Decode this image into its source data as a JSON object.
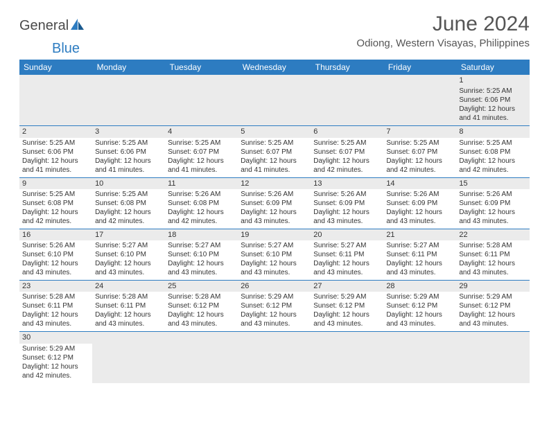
{
  "logo": {
    "gray_text": "General",
    "blue_text": "Blue"
  },
  "title": "June 2024",
  "location": "Odiong, Western Visayas, Philippines",
  "colors": {
    "header_bg": "#2d7cc1",
    "header_text": "#ffffff",
    "daynum_bg": "#ebebeb",
    "text": "#333333",
    "title_text": "#555555",
    "border": "#2d7cc1"
  },
  "fonts": {
    "title_size": 30,
    "location_size": 15,
    "th_size": 12,
    "cell_size": 10,
    "daynum_size": 11
  },
  "weekdays": [
    "Sunday",
    "Monday",
    "Tuesday",
    "Wednesday",
    "Thursday",
    "Friday",
    "Saturday"
  ],
  "weeks": [
    [
      null,
      null,
      null,
      null,
      null,
      null,
      {
        "n": "1",
        "sr": "Sunrise: 5:25 AM",
        "ss": "Sunset: 6:06 PM",
        "d1": "Daylight: 12 hours",
        "d2": "and 41 minutes."
      }
    ],
    [
      {
        "n": "2",
        "sr": "Sunrise: 5:25 AM",
        "ss": "Sunset: 6:06 PM",
        "d1": "Daylight: 12 hours",
        "d2": "and 41 minutes."
      },
      {
        "n": "3",
        "sr": "Sunrise: 5:25 AM",
        "ss": "Sunset: 6:06 PM",
        "d1": "Daylight: 12 hours",
        "d2": "and 41 minutes."
      },
      {
        "n": "4",
        "sr": "Sunrise: 5:25 AM",
        "ss": "Sunset: 6:07 PM",
        "d1": "Daylight: 12 hours",
        "d2": "and 41 minutes."
      },
      {
        "n": "5",
        "sr": "Sunrise: 5:25 AM",
        "ss": "Sunset: 6:07 PM",
        "d1": "Daylight: 12 hours",
        "d2": "and 41 minutes."
      },
      {
        "n": "6",
        "sr": "Sunrise: 5:25 AM",
        "ss": "Sunset: 6:07 PM",
        "d1": "Daylight: 12 hours",
        "d2": "and 42 minutes."
      },
      {
        "n": "7",
        "sr": "Sunrise: 5:25 AM",
        "ss": "Sunset: 6:07 PM",
        "d1": "Daylight: 12 hours",
        "d2": "and 42 minutes."
      },
      {
        "n": "8",
        "sr": "Sunrise: 5:25 AM",
        "ss": "Sunset: 6:08 PM",
        "d1": "Daylight: 12 hours",
        "d2": "and 42 minutes."
      }
    ],
    [
      {
        "n": "9",
        "sr": "Sunrise: 5:25 AM",
        "ss": "Sunset: 6:08 PM",
        "d1": "Daylight: 12 hours",
        "d2": "and 42 minutes."
      },
      {
        "n": "10",
        "sr": "Sunrise: 5:25 AM",
        "ss": "Sunset: 6:08 PM",
        "d1": "Daylight: 12 hours",
        "d2": "and 42 minutes."
      },
      {
        "n": "11",
        "sr": "Sunrise: 5:26 AM",
        "ss": "Sunset: 6:08 PM",
        "d1": "Daylight: 12 hours",
        "d2": "and 42 minutes."
      },
      {
        "n": "12",
        "sr": "Sunrise: 5:26 AM",
        "ss": "Sunset: 6:09 PM",
        "d1": "Daylight: 12 hours",
        "d2": "and 43 minutes."
      },
      {
        "n": "13",
        "sr": "Sunrise: 5:26 AM",
        "ss": "Sunset: 6:09 PM",
        "d1": "Daylight: 12 hours",
        "d2": "and 43 minutes."
      },
      {
        "n": "14",
        "sr": "Sunrise: 5:26 AM",
        "ss": "Sunset: 6:09 PM",
        "d1": "Daylight: 12 hours",
        "d2": "and 43 minutes."
      },
      {
        "n": "15",
        "sr": "Sunrise: 5:26 AM",
        "ss": "Sunset: 6:09 PM",
        "d1": "Daylight: 12 hours",
        "d2": "and 43 minutes."
      }
    ],
    [
      {
        "n": "16",
        "sr": "Sunrise: 5:26 AM",
        "ss": "Sunset: 6:10 PM",
        "d1": "Daylight: 12 hours",
        "d2": "and 43 minutes."
      },
      {
        "n": "17",
        "sr": "Sunrise: 5:27 AM",
        "ss": "Sunset: 6:10 PM",
        "d1": "Daylight: 12 hours",
        "d2": "and 43 minutes."
      },
      {
        "n": "18",
        "sr": "Sunrise: 5:27 AM",
        "ss": "Sunset: 6:10 PM",
        "d1": "Daylight: 12 hours",
        "d2": "and 43 minutes."
      },
      {
        "n": "19",
        "sr": "Sunrise: 5:27 AM",
        "ss": "Sunset: 6:10 PM",
        "d1": "Daylight: 12 hours",
        "d2": "and 43 minutes."
      },
      {
        "n": "20",
        "sr": "Sunrise: 5:27 AM",
        "ss": "Sunset: 6:11 PM",
        "d1": "Daylight: 12 hours",
        "d2": "and 43 minutes."
      },
      {
        "n": "21",
        "sr": "Sunrise: 5:27 AM",
        "ss": "Sunset: 6:11 PM",
        "d1": "Daylight: 12 hours",
        "d2": "and 43 minutes."
      },
      {
        "n": "22",
        "sr": "Sunrise: 5:28 AM",
        "ss": "Sunset: 6:11 PM",
        "d1": "Daylight: 12 hours",
        "d2": "and 43 minutes."
      }
    ],
    [
      {
        "n": "23",
        "sr": "Sunrise: 5:28 AM",
        "ss": "Sunset: 6:11 PM",
        "d1": "Daylight: 12 hours",
        "d2": "and 43 minutes."
      },
      {
        "n": "24",
        "sr": "Sunrise: 5:28 AM",
        "ss": "Sunset: 6:11 PM",
        "d1": "Daylight: 12 hours",
        "d2": "and 43 minutes."
      },
      {
        "n": "25",
        "sr": "Sunrise: 5:28 AM",
        "ss": "Sunset: 6:12 PM",
        "d1": "Daylight: 12 hours",
        "d2": "and 43 minutes."
      },
      {
        "n": "26",
        "sr": "Sunrise: 5:29 AM",
        "ss": "Sunset: 6:12 PM",
        "d1": "Daylight: 12 hours",
        "d2": "and 43 minutes."
      },
      {
        "n": "27",
        "sr": "Sunrise: 5:29 AM",
        "ss": "Sunset: 6:12 PM",
        "d1": "Daylight: 12 hours",
        "d2": "and 43 minutes."
      },
      {
        "n": "28",
        "sr": "Sunrise: 5:29 AM",
        "ss": "Sunset: 6:12 PM",
        "d1": "Daylight: 12 hours",
        "d2": "and 43 minutes."
      },
      {
        "n": "29",
        "sr": "Sunrise: 5:29 AM",
        "ss": "Sunset: 6:12 PM",
        "d1": "Daylight: 12 hours",
        "d2": "and 43 minutes."
      }
    ],
    [
      {
        "n": "30",
        "sr": "Sunrise: 5:29 AM",
        "ss": "Sunset: 6:12 PM",
        "d1": "Daylight: 12 hours",
        "d2": "and 42 minutes."
      },
      null,
      null,
      null,
      null,
      null,
      null
    ]
  ]
}
